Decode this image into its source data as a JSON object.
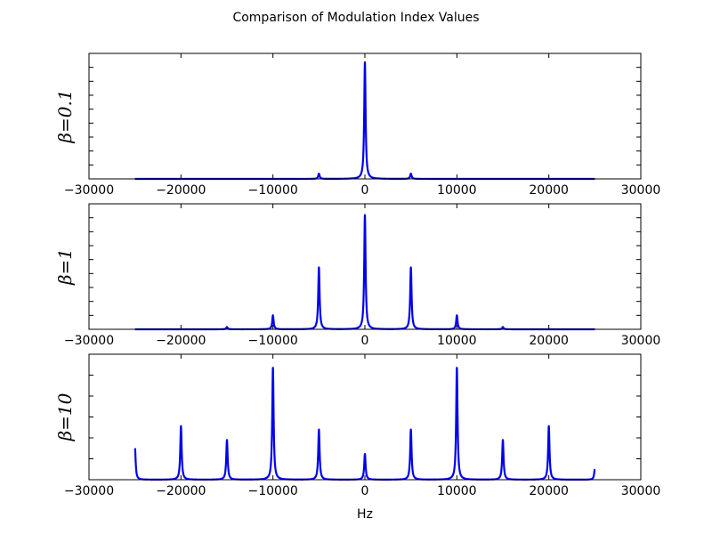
{
  "figure": {
    "title": "Comparison of Modulation Index Values",
    "xlabel": "Hz"
  },
  "colors": {
    "line": "#0000ee",
    "axes": "#000000",
    "background": "#ffffff"
  },
  "chart_data": [
    {
      "type": "line",
      "ylabel": "β=0.1",
      "xlim": [
        -30000,
        30000
      ],
      "x_ticks": [
        -30000,
        -20000,
        -10000,
        0,
        10000,
        20000,
        30000
      ],
      "x_tick_labels": [
        "−30000",
        "−20000",
        "−10000",
        "0",
        "10000",
        "20000",
        "30000"
      ],
      "y_tick_count": 9,
      "yticks_labeled": false,
      "data_range": [
        -25000,
        25000
      ],
      "peak_width_hz": 90,
      "peaks": [
        {
          "x": -5000,
          "y": 0.045
        },
        {
          "x": 0,
          "y": 1.0
        },
        {
          "x": 5000,
          "y": 0.045
        }
      ]
    },
    {
      "type": "line",
      "ylabel": "β=1",
      "xlim": [
        -30000,
        30000
      ],
      "x_ticks": [
        -30000,
        -20000,
        -10000,
        0,
        10000,
        20000,
        30000
      ],
      "x_tick_labels": [
        "−30000",
        "−20000",
        "−10000",
        "0",
        "10000",
        "20000",
        "30000"
      ],
      "y_tick_count": 9,
      "yticks_labeled": false,
      "data_range": [
        -25000,
        25000
      ],
      "peak_width_hz": 90,
      "peaks": [
        {
          "x": -15000,
          "y": 0.02
        },
        {
          "x": -10000,
          "y": 0.12
        },
        {
          "x": -5000,
          "y": 0.53
        },
        {
          "x": 0,
          "y": 0.98
        },
        {
          "x": 5000,
          "y": 0.53
        },
        {
          "x": 10000,
          "y": 0.12
        },
        {
          "x": 15000,
          "y": 0.02
        }
      ]
    },
    {
      "type": "line",
      "ylabel": "β=10",
      "xlim": [
        -30000,
        30000
      ],
      "x_ticks": [
        -30000,
        -20000,
        -10000,
        0,
        10000,
        20000,
        30000
      ],
      "x_tick_labels": [
        "−30000",
        "−20000",
        "−10000",
        "0",
        "10000",
        "20000",
        "30000"
      ],
      "y_tick_count": 6,
      "yticks_labeled": false,
      "data_range": [
        -25000,
        25000
      ],
      "peak_width_hz": 90,
      "peaks": [
        {
          "x": -25000,
          "y": 0.27
        },
        {
          "x": -20000,
          "y": 0.46
        },
        {
          "x": -15000,
          "y": 0.34
        },
        {
          "x": -10000,
          "y": 0.96
        },
        {
          "x": -5000,
          "y": 0.43
        },
        {
          "x": 0,
          "y": 0.22
        },
        {
          "x": 5000,
          "y": 0.43
        },
        {
          "x": 10000,
          "y": 0.96
        },
        {
          "x": 15000,
          "y": 0.34
        },
        {
          "x": 20000,
          "y": 0.46
        },
        {
          "x": 25000,
          "y": 0.09
        }
      ]
    }
  ]
}
